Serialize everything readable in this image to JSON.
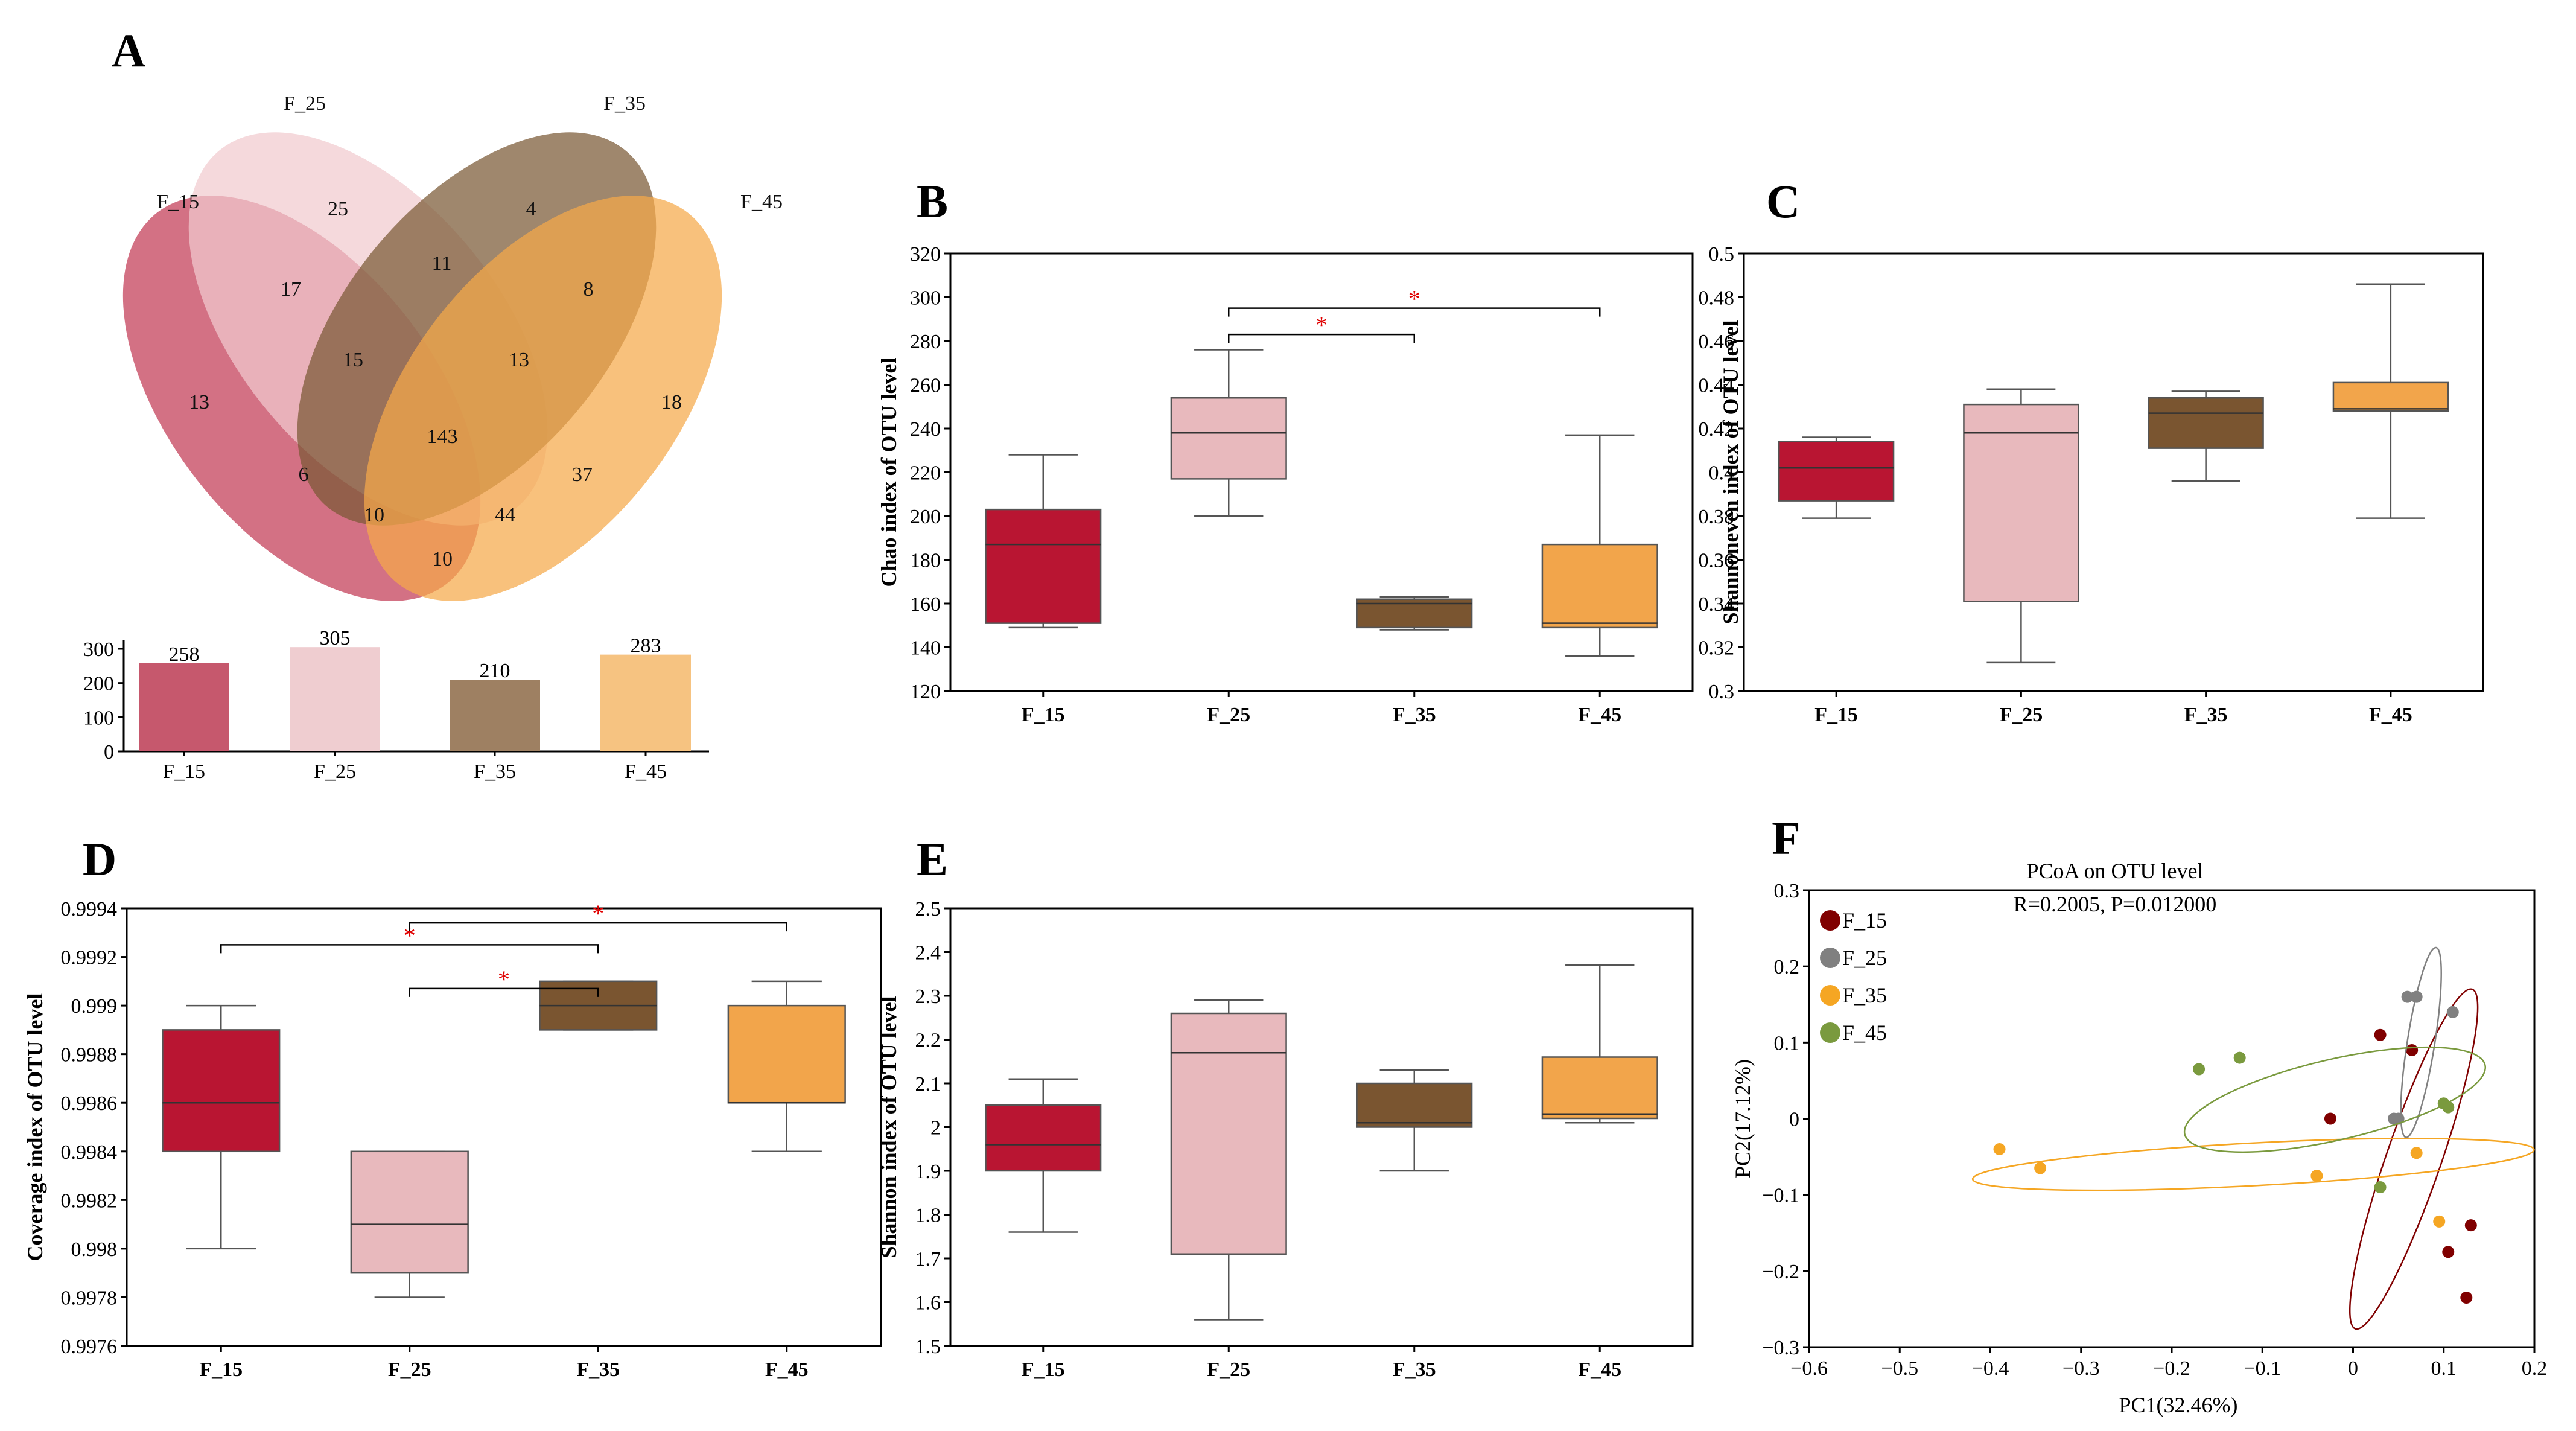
{
  "chart_data": [
    {
      "panel": "A",
      "type": "venn",
      "sets": [
        "F_15",
        "F_25",
        "F_35",
        "F_45"
      ],
      "colors": {
        "F_15": "#c23a55",
        "F_25": "#f1cbcf",
        "F_35": "#7a5934",
        "F_45": "#f5a94a"
      },
      "regions": {
        "F_15_only": 13,
        "F_25_only": 25,
        "F_35_only": 4,
        "F_45_only": 18,
        "F_15_F_25": 17,
        "F_25_F_35": 11,
        "F_35_F_45": 8,
        "F_15_F_25_F_35": 15,
        "F_25_F_35_F_45": 13,
        "all": 143,
        "F_15_F_35": 6,
        "F_25_F_45": 37,
        "F_15_F_35_F_45": 10,
        "F_15_F_25_F_45": 44,
        "F_15_F_45": 10
      },
      "bar": {
        "type": "bar",
        "categories": [
          "F_15",
          "F_25",
          "F_35",
          "F_45"
        ],
        "values": [
          258,
          305,
          210,
          283
        ],
        "colors": [
          "#c6586d",
          "#efcdd0",
          "#9e8062",
          "#f6c381"
        ],
        "yticks": [
          0,
          100,
          200,
          300
        ]
      }
    },
    {
      "panel": "B",
      "type": "box",
      "ylabel": "Chao index of OTU level",
      "ylim": [
        120,
        320
      ],
      "yticks": [
        120,
        140,
        160,
        180,
        200,
        220,
        240,
        260,
        280,
        300,
        320
      ],
      "categories": [
        "F_15",
        "F_25",
        "F_35",
        "F_45"
      ],
      "colors": [
        "#b91532",
        "#e8b9bd",
        "#7a5530",
        "#f2a54b"
      ],
      "boxes": [
        {
          "min": 149,
          "q1": 151,
          "median": 187,
          "q3": 203,
          "max": 228
        },
        {
          "min": 200,
          "q1": 217,
          "median": 238,
          "q3": 254,
          "max": 276
        },
        {
          "min": 148,
          "q1": 149,
          "median": 160,
          "q3": 162,
          "max": 163
        },
        {
          "min": 136,
          "q1": 149,
          "median": 151,
          "q3": 187,
          "max": 237
        }
      ],
      "significance": [
        {
          "from": 1,
          "to": 2,
          "y": 283,
          "label": "*"
        },
        {
          "from": 1,
          "to": 3,
          "y": 295,
          "label": "*"
        }
      ]
    },
    {
      "panel": "C",
      "type": "box",
      "ylabel": "Shannoneven index of OTU level",
      "ylim": [
        0.3,
        0.5
      ],
      "yticks": [
        0.3,
        0.32,
        0.34,
        0.36,
        0.38,
        0.4,
        0.42,
        0.44,
        0.46,
        0.48,
        0.5
      ],
      "ytick_labels": [
        "0.3",
        "0.32",
        "0.34",
        "0.36",
        "0.38",
        "0.4",
        "0.42",
        "0.44",
        "0.46",
        "0.48",
        "0.5"
      ],
      "categories": [
        "F_15",
        "F_25",
        "F_35",
        "F_45"
      ],
      "colors": [
        "#b91532",
        "#e8b9bd",
        "#7a5530",
        "#f2a54b"
      ],
      "boxes": [
        {
          "min": 0.379,
          "q1": 0.387,
          "median": 0.402,
          "q3": 0.414,
          "max": 0.416
        },
        {
          "min": 0.313,
          "q1": 0.341,
          "median": 0.418,
          "q3": 0.431,
          "max": 0.438
        },
        {
          "min": 0.396,
          "q1": 0.411,
          "median": 0.427,
          "q3": 0.434,
          "max": 0.437
        },
        {
          "min": 0.379,
          "q1": 0.428,
          "median": 0.429,
          "q3": 0.441,
          "max": 0.486
        }
      ],
      "significance": []
    },
    {
      "panel": "D",
      "type": "box",
      "ylabel": "Coverage index of OTU level",
      "ylim": [
        0.9976,
        0.9994
      ],
      "yticks": [
        0.9976,
        0.9978,
        0.998,
        0.9982,
        0.9984,
        0.9986,
        0.9988,
        0.999,
        0.9992,
        0.9994
      ],
      "ytick_labels": [
        "0.9976",
        "0.9978",
        "0.998",
        "0.9982",
        "0.9984",
        "0.9986",
        "0.9988",
        "0.999",
        "0.9992",
        "0.9994"
      ],
      "categories": [
        "F_15",
        "F_25",
        "F_35",
        "F_45"
      ],
      "colors": [
        "#b91532",
        "#e8b9bd",
        "#7a5530",
        "#f2a54b"
      ],
      "boxes": [
        {
          "min": 0.998,
          "q1": 0.9984,
          "median": 0.9986,
          "q3": 0.9989,
          "max": 0.999
        },
        {
          "min": 0.9978,
          "q1": 0.9979,
          "median": 0.9981,
          "q3": 0.9984,
          "max": 0.9984
        },
        {
          "min": 0.9989,
          "q1": 0.9989,
          "median": 0.999,
          "q3": 0.9991,
          "max": 0.9991
        },
        {
          "min": 0.9984,
          "q1": 0.9986,
          "median": 0.9986,
          "q3": 0.999,
          "max": 0.9991
        }
      ],
      "significance": [
        {
          "from": 1,
          "to": 2,
          "y": 0.99907,
          "label": "*"
        },
        {
          "from": 0,
          "to": 2,
          "y": 0.99925,
          "label": "*"
        },
        {
          "from": 1,
          "to": 3,
          "y": 0.99934,
          "label": "*"
        }
      ]
    },
    {
      "panel": "E",
      "type": "box",
      "ylabel": "Shannon index of OTU level",
      "ylim": [
        1.5,
        2.5
      ],
      "yticks": [
        1.5,
        1.6,
        1.7,
        1.8,
        1.9,
        2.0,
        2.1,
        2.2,
        2.3,
        2.4,
        2.5
      ],
      "ytick_labels": [
        "1.5",
        "1.6",
        "1.7",
        "1.8",
        "1.9",
        "2",
        "2.1",
        "2.2",
        "2.3",
        "2.4",
        "2.5"
      ],
      "categories": [
        "F_15",
        "F_25",
        "F_35",
        "F_45"
      ],
      "colors": [
        "#b91532",
        "#e8b9bd",
        "#7a5530",
        "#f2a54b"
      ],
      "boxes": [
        {
          "min": 1.76,
          "q1": 1.9,
          "median": 1.96,
          "q3": 2.05,
          "max": 2.11
        },
        {
          "min": 1.56,
          "q1": 1.71,
          "median": 2.17,
          "q3": 2.26,
          "max": 2.29
        },
        {
          "min": 1.9,
          "q1": 2.0,
          "median": 2.01,
          "q3": 2.1,
          "max": 2.13
        },
        {
          "min": 2.01,
          "q1": 2.02,
          "median": 2.03,
          "q3": 2.16,
          "max": 2.37
        }
      ],
      "significance": []
    },
    {
      "panel": "F",
      "type": "scatter",
      "title": "PCoA on OTU level",
      "subtitle": "R=0.2005, P=0.012000",
      "xlabel": "PC1(32.46%)",
      "ylabel": "PC2(17.12%)",
      "xlim": [
        -0.6,
        0.2
      ],
      "ylim": [
        -0.3,
        0.3
      ],
      "xticks": [
        -0.6,
        -0.5,
        -0.4,
        -0.3,
        -0.2,
        -0.1,
        0,
        0.1,
        0.2
      ],
      "xtick_labels": [
        "−0.6",
        "−0.5",
        "−0.4",
        "−0.3",
        "−0.2",
        "−0.1",
        "0",
        "0.1",
        "0.2"
      ],
      "yticks": [
        -0.3,
        -0.2,
        -0.1,
        0,
        0.1,
        0.2,
        0.3
      ],
      "ytick_labels": [
        "−0.3",
        "−0.2",
        "−0.1",
        "0",
        "0.1",
        "0.2",
        "0.3"
      ],
      "series": [
        {
          "name": "F_15",
          "color": "#800000",
          "points": [
            [
              0.03,
              0.11
            ],
            [
              0.065,
              0.09
            ],
            [
              -0.025,
              0.0
            ],
            [
              0.13,
              -0.14
            ],
            [
              0.105,
              -0.175
            ],
            [
              0.125,
              -0.235
            ]
          ],
          "ellipse": {
            "cx": 0.067,
            "cy": -0.053,
            "rx": 0.198,
            "ry": 0.036,
            "angle": -71
          }
        },
        {
          "name": "F_25",
          "color": "#808080",
          "points": [
            [
              0.06,
              0.16
            ],
            [
              0.07,
              0.16
            ],
            [
              0.11,
              0.14
            ],
            [
              0.045,
              0.0
            ],
            [
              0.05,
              0.0
            ]
          ],
          "ellipse": {
            "cx": 0.075,
            "cy": 0.1,
            "rx": 0.106,
            "ry": 0.018,
            "angle": -81
          }
        },
        {
          "name": "F_35",
          "color": "#f5a623",
          "points": [
            [
              -0.39,
              -0.04
            ],
            [
              -0.345,
              -0.065
            ],
            [
              -0.04,
              -0.075
            ],
            [
              0.07,
              -0.045
            ],
            [
              0.095,
              -0.135
            ]
          ],
          "ellipse": {
            "cx": -0.11,
            "cy": -0.06,
            "rx": 0.31,
            "ry": 0.028,
            "angle": -3
          }
        },
        {
          "name": "F_45",
          "color": "#7a9a3e",
          "points": [
            [
              -0.17,
              0.065
            ],
            [
              -0.125,
              0.08
            ],
            [
              0.03,
              -0.09
            ],
            [
              0.1,
              0.02
            ],
            [
              0.105,
              0.015
            ]
          ],
          "ellipse": {
            "cx": -0.02,
            "cy": 0.025,
            "rx": 0.17,
            "ry": 0.053,
            "angle": -13
          }
        }
      ]
    }
  ]
}
